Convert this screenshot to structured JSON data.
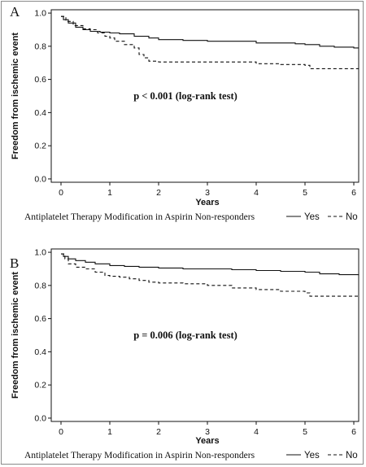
{
  "chart_data": [
    {
      "type": "line",
      "panel": "A",
      "xlabel": "Years",
      "ylabel": "Freedom from ischemic event",
      "xlim": [
        -0.2,
        6.1
      ],
      "ylim": [
        -0.02,
        1.02
      ],
      "x_ticks": [
        "0",
        "1",
        "2",
        "3",
        "4",
        "5",
        "6"
      ],
      "y_ticks": [
        "0.0",
        "0.2",
        "0.4",
        "0.6",
        "0.8",
        "1.0"
      ],
      "annotation": "p < 0.001 (log-rank test)",
      "legend": {
        "title": "Antiplatelet Therapy Modification in Aspirin Non-responders",
        "placement": "bottom"
      },
      "series": [
        {
          "name": "Yes",
          "style": "solid",
          "points": [
            [
              0,
              0.98
            ],
            [
              0.05,
              0.96
            ],
            [
              0.15,
              0.94
            ],
            [
              0.3,
              0.915
            ],
            [
              0.45,
              0.9
            ],
            [
              0.6,
              0.89
            ],
            [
              0.8,
              0.885
            ],
            [
              1.0,
              0.88
            ],
            [
              1.2,
              0.875
            ],
            [
              1.5,
              0.86
            ],
            [
              1.8,
              0.85
            ],
            [
              2.0,
              0.84
            ],
            [
              2.5,
              0.835
            ],
            [
              3.0,
              0.83
            ],
            [
              3.5,
              0.83
            ],
            [
              3.8,
              0.83
            ],
            [
              4.0,
              0.82
            ],
            [
              4.5,
              0.82
            ],
            [
              4.8,
              0.815
            ],
            [
              5.0,
              0.81
            ],
            [
              5.3,
              0.8
            ],
            [
              5.6,
              0.795
            ],
            [
              6.0,
              0.79
            ],
            [
              6.1,
              0.79
            ]
          ]
        },
        {
          "name": "No",
          "style": "dashed",
          "points": [
            [
              0,
              0.98
            ],
            [
              0.1,
              0.95
            ],
            [
              0.25,
              0.925
            ],
            [
              0.45,
              0.905
            ],
            [
              0.6,
              0.9
            ],
            [
              0.75,
              0.88
            ],
            [
              0.9,
              0.86
            ],
            [
              1.0,
              0.85
            ],
            [
              1.1,
              0.83
            ],
            [
              1.3,
              0.81
            ],
            [
              1.5,
              0.79
            ],
            [
              1.6,
              0.75
            ],
            [
              1.7,
              0.73
            ],
            [
              1.8,
              0.71
            ],
            [
              2.0,
              0.705
            ],
            [
              2.5,
              0.705
            ],
            [
              3.0,
              0.705
            ],
            [
              3.5,
              0.705
            ],
            [
              4.0,
              0.695
            ],
            [
              4.5,
              0.69
            ],
            [
              5.0,
              0.685
            ],
            [
              5.1,
              0.665
            ],
            [
              5.5,
              0.665
            ],
            [
              6.0,
              0.665
            ],
            [
              6.1,
              0.665
            ]
          ]
        }
      ]
    },
    {
      "type": "line",
      "panel": "B",
      "xlabel": "Years",
      "ylabel": "Freedom from ischemic event",
      "xlim": [
        -0.2,
        6.1
      ],
      "ylim": [
        -0.02,
        1.02
      ],
      "x_ticks": [
        "0",
        "1",
        "2",
        "3",
        "4",
        "5",
        "6"
      ],
      "y_ticks": [
        "0.0",
        "0.2",
        "0.4",
        "0.6",
        "0.8",
        "1.0"
      ],
      "annotation": "p = 0.006 (log-rank test)",
      "legend": {
        "title": "Antiplatelet Therapy Modification in Aspirin Non-responders",
        "placement": "bottom"
      },
      "series": [
        {
          "name": "Yes",
          "style": "solid",
          "points": [
            [
              0,
              0.99
            ],
            [
              0.05,
              0.975
            ],
            [
              0.15,
              0.96
            ],
            [
              0.3,
              0.95
            ],
            [
              0.5,
              0.94
            ],
            [
              0.7,
              0.93
            ],
            [
              1.0,
              0.92
            ],
            [
              1.3,
              0.915
            ],
            [
              1.6,
              0.91
            ],
            [
              2.0,
              0.905
            ],
            [
              2.5,
              0.9
            ],
            [
              3.0,
              0.9
            ],
            [
              3.5,
              0.895
            ],
            [
              4.0,
              0.89
            ],
            [
              4.5,
              0.885
            ],
            [
              5.0,
              0.88
            ],
            [
              5.3,
              0.87
            ],
            [
              5.7,
              0.865
            ],
            [
              6.1,
              0.86
            ]
          ]
        },
        {
          "name": "No",
          "style": "dashed",
          "points": [
            [
              0,
              0.99
            ],
            [
              0.08,
              0.96
            ],
            [
              0.15,
              0.93
            ],
            [
              0.3,
              0.91
            ],
            [
              0.5,
              0.9
            ],
            [
              0.7,
              0.88
            ],
            [
              0.9,
              0.86
            ],
            [
              1.0,
              0.855
            ],
            [
              1.2,
              0.85
            ],
            [
              1.4,
              0.84
            ],
            [
              1.6,
              0.83
            ],
            [
              1.8,
              0.82
            ],
            [
              2.0,
              0.815
            ],
            [
              2.5,
              0.81
            ],
            [
              3.0,
              0.8
            ],
            [
              3.5,
              0.785
            ],
            [
              4.0,
              0.775
            ],
            [
              4.5,
              0.765
            ],
            [
              5.0,
              0.755
            ],
            [
              5.1,
              0.735
            ],
            [
              5.5,
              0.735
            ],
            [
              6.1,
              0.735
            ]
          ]
        }
      ]
    }
  ]
}
